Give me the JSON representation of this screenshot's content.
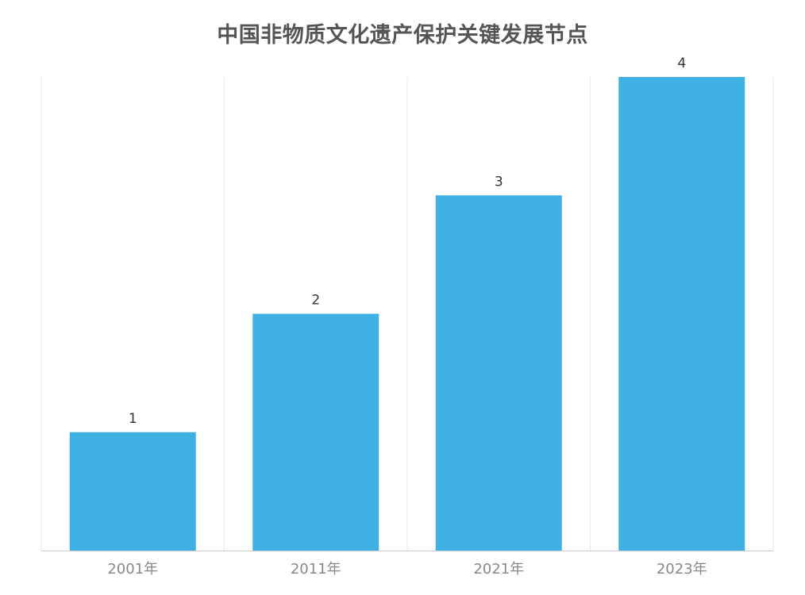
{
  "chart_data": {
    "type": "bar",
    "title": "中国非物质文化遗产保护关键发展节点",
    "categories": [
      "2001年",
      "2011年",
      "2021年",
      "2023年"
    ],
    "values": [
      1,
      2,
      3,
      4
    ],
    "ylim": [
      0,
      4
    ],
    "grid": "vertical",
    "bar_color": "#3fb1e3",
    "data_labels": true,
    "xlabel": "",
    "ylabel": ""
  }
}
